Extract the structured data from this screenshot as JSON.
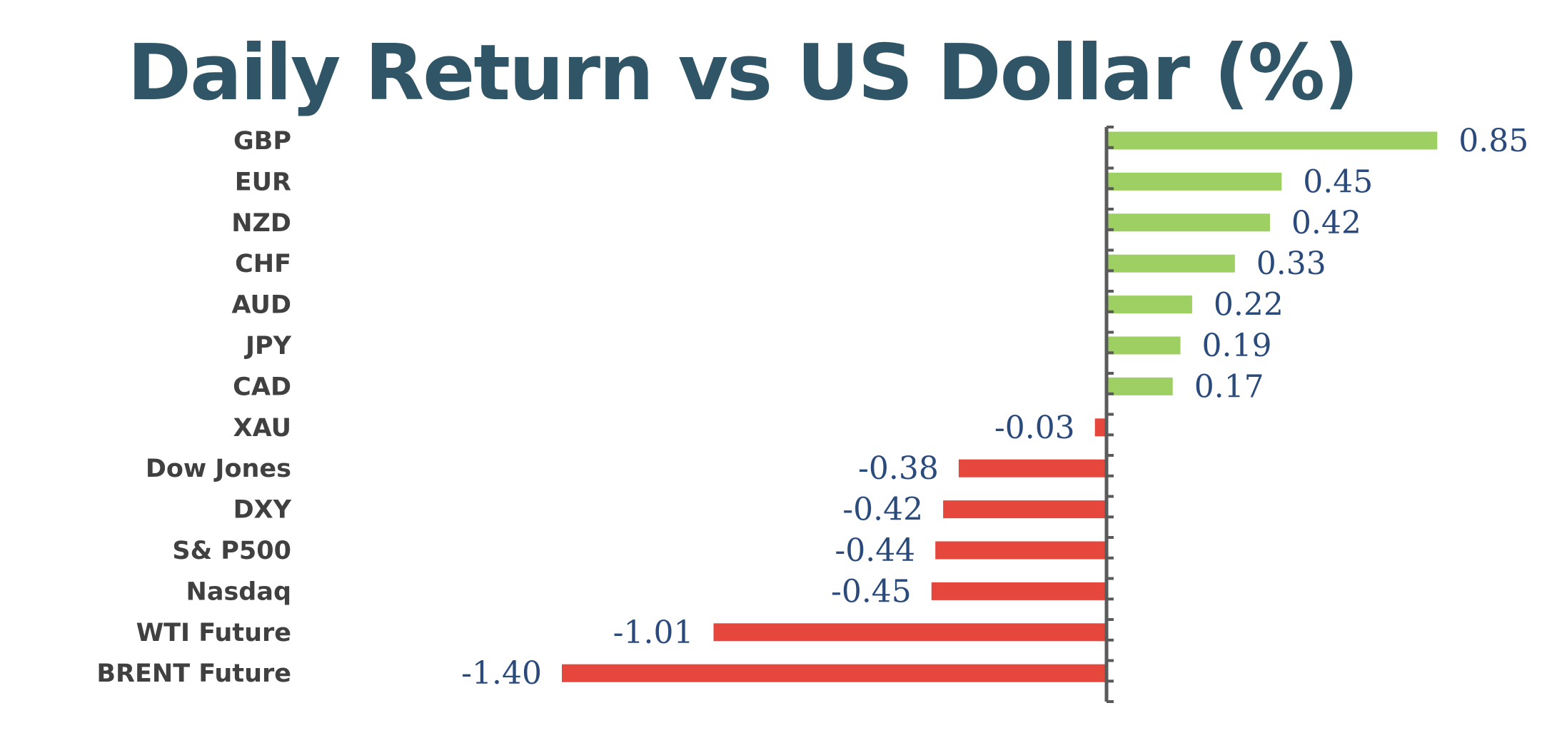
{
  "chart_data": {
    "type": "bar",
    "orientation": "horizontal",
    "title": "Daily Return vs US Dollar (%)",
    "categories": [
      "GBP",
      "EUR",
      "NZD",
      "CHF",
      "AUD",
      "JPY",
      "CAD",
      "XAU",
      "Dow Jones",
      "DXY",
      "S& P500",
      "Nasdaq",
      "WTI Future",
      "BRENT Future"
    ],
    "values": [
      0.85,
      0.45,
      0.42,
      0.33,
      0.22,
      0.19,
      0.17,
      -0.03,
      -0.38,
      -0.42,
      -0.44,
      -0.45,
      -1.01,
      -1.4
    ],
    "value_labels": [
      "0.85",
      "0.45",
      "0.42",
      "0.33",
      "0.22",
      "0.19",
      "0.17",
      "-0.03",
      "-0.38",
      "-0.42",
      "-0.44",
      "-0.45",
      "-1.01",
      "-1.40"
    ],
    "positive_color": "#9dcf62",
    "negative_color": "#e6473d",
    "axis_color": "#5a5a5a",
    "xlim": [
      -1.4,
      0.85
    ],
    "grid": false,
    "legend": "none"
  }
}
